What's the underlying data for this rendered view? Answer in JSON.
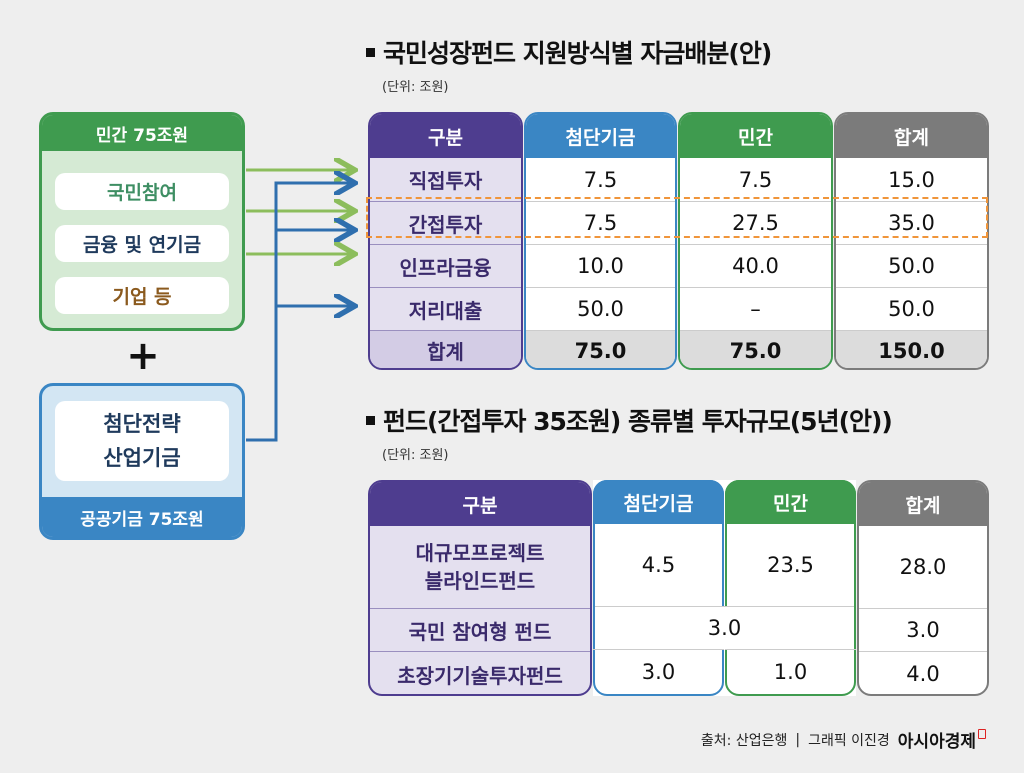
{
  "left": {
    "private_header": "민간 75조원",
    "private_items": [
      "국민참여",
      "금융 및 연기금",
      "기업 등"
    ],
    "plus": "+",
    "public_inner": [
      "첨단전략",
      "산업기금"
    ],
    "public_footer": "공공기금 75조원"
  },
  "table1": {
    "title": "국민성장펀드 지원방식별 자금배분(안)",
    "unit": "(단위: 조원)",
    "headers": [
      "구분",
      "첨단기금",
      "민간",
      "합계"
    ],
    "rows": [
      {
        "label": "직접투자",
        "advanced": "7.5",
        "private": "7.5",
        "total": "15.0"
      },
      {
        "label": "간접투자",
        "advanced": "7.5",
        "private": "27.5",
        "total": "35.0"
      },
      {
        "label": "인프라금융",
        "advanced": "10.0",
        "private": "40.0",
        "total": "50.0"
      },
      {
        "label": "저리대출",
        "advanced": "50.0",
        "private": "–",
        "total": "50.0"
      },
      {
        "label": "합계",
        "advanced": "75.0",
        "private": "75.0",
        "total": "150.0"
      }
    ]
  },
  "table2": {
    "title": "펀드(간접투자 35조원) 종류별 투자규모(5년(안))",
    "unit": "(단위: 조원)",
    "headers": [
      "구분",
      "첨단기금",
      "민간",
      "합계"
    ],
    "rows": [
      {
        "label1": "대규모프로젝트",
        "label2": "블라인드펀드",
        "advanced": "4.5",
        "private": "23.5",
        "total": "28.0"
      },
      {
        "label": "국민 참여형 펀드",
        "merged": "3.0",
        "total": "3.0"
      },
      {
        "label": "초장기기술투자펀드",
        "advanced": "3.0",
        "private": "1.0",
        "total": "4.0"
      }
    ]
  },
  "footer": {
    "source": "출처: 산업은행",
    "divider": "|",
    "graphic": "그래픽 이진경",
    "brand": "아시아경제"
  },
  "colors": {
    "purple": "#4e3d8f",
    "blue": "#3a86c4",
    "green": "#3f9b4f",
    "gray": "#7b7b7b",
    "highlight": "#f0953a"
  }
}
